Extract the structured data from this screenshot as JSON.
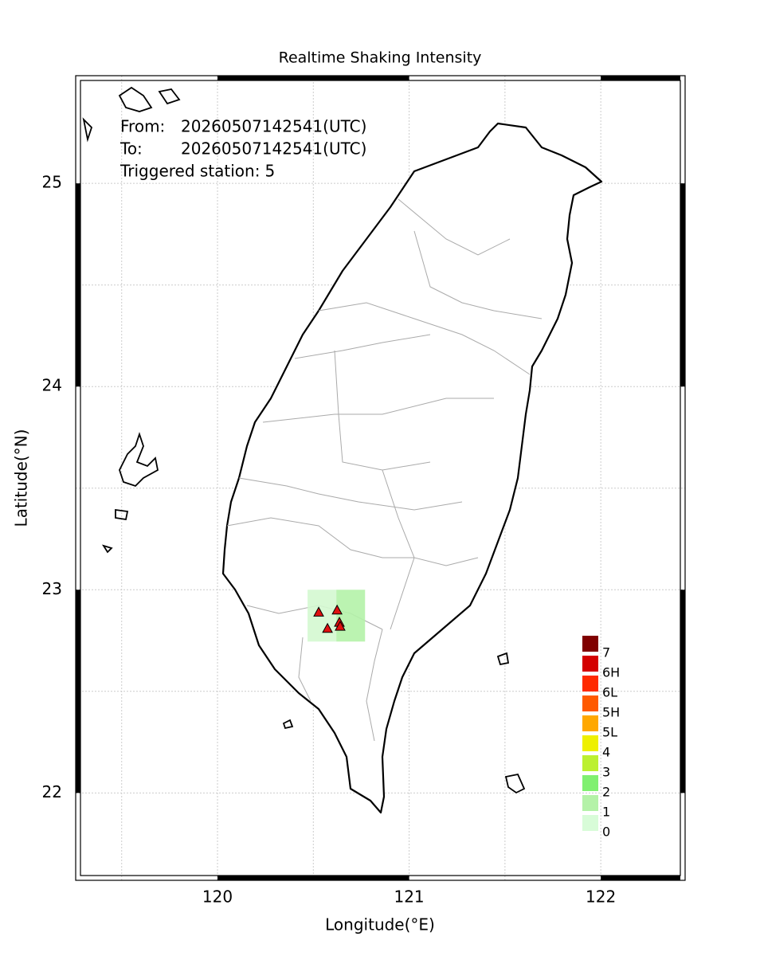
{
  "map": {
    "title": "Realtime Shaking Intensity",
    "x_label": "Longitude(°E)",
    "y_label": "Latitude(°N)",
    "xlim": [
      119.26,
      122.44
    ],
    "ylim": [
      21.57,
      25.53
    ],
    "xticks": [
      120,
      121,
      122
    ],
    "yticks": [
      22,
      23,
      24,
      25
    ],
    "xgrid": [
      119.5,
      120,
      120.5,
      121,
      121.5,
      122
    ],
    "ygrid": [
      22,
      22.5,
      23,
      23.5,
      24,
      24.5,
      25
    ],
    "info": [
      {
        "label": "From:",
        "value": "20260507142541(UTC)"
      },
      {
        "label": "To:",
        "value": "20260507142541(UTC)"
      },
      {
        "label": "Triggered station:",
        "value": "5"
      }
    ],
    "intensity_cells": [
      {
        "lon0": 120.47,
        "lon1": 120.62,
        "lat0": 22.745,
        "lat1": 23.0,
        "color": "#d4f8d0"
      },
      {
        "lon0": 120.62,
        "lon1": 120.77,
        "lat0": 22.745,
        "lat1": 23.0,
        "color": "#b4f2a8"
      }
    ],
    "station_color": "#e01010",
    "stations": [
      {
        "lon": 120.528,
        "lat": 22.89
      },
      {
        "lon": 120.624,
        "lat": 22.9
      },
      {
        "lon": 120.574,
        "lat": 22.81
      },
      {
        "lon": 120.636,
        "lat": 22.84
      },
      {
        "lon": 120.64,
        "lat": 22.82
      }
    ],
    "legend": [
      {
        "label": "7",
        "color": "#800000"
      },
      {
        "label": "6H",
        "color": "#d40000"
      },
      {
        "label": "6L",
        "color": "#ff2a00"
      },
      {
        "label": "5H",
        "color": "#ff5a00"
      },
      {
        "label": "5L",
        "color": "#ffa800"
      },
      {
        "label": "4",
        "color": "#eef000"
      },
      {
        "label": "3",
        "color": "#bcf030"
      },
      {
        "label": "2",
        "color": "#80f070"
      },
      {
        "label": "1",
        "color": "#b4f2a8"
      },
      {
        "label": "0",
        "color": "#d8fcd8"
      }
    ]
  }
}
